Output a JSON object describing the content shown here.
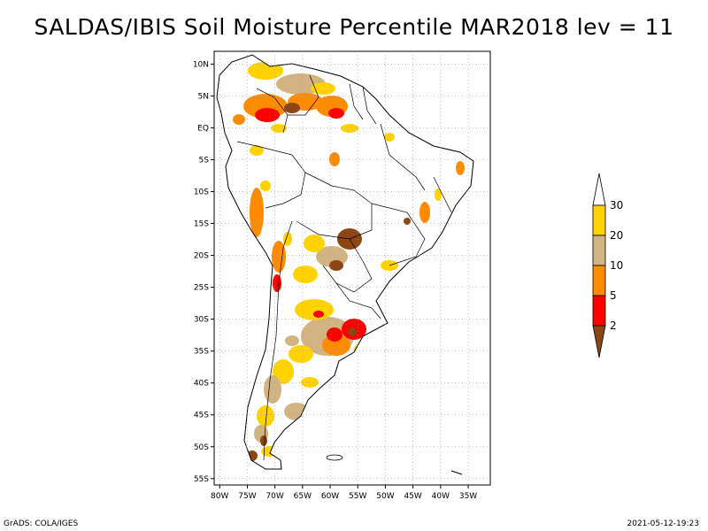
{
  "title": "SALDAS/IBIS Soil Moisture Percentile MAR2018 lev = 11",
  "map": {
    "lon_range": [
      -81,
      -31
    ],
    "lat_range": [
      -56,
      12
    ],
    "lon_ticks": [
      {
        "value": -80,
        "label": "80W"
      },
      {
        "value": -75,
        "label": "75W"
      },
      {
        "value": -70,
        "label": "70W"
      },
      {
        "value": -65,
        "label": "65W"
      },
      {
        "value": -60,
        "label": "60W"
      },
      {
        "value": -55,
        "label": "55W"
      },
      {
        "value": -50,
        "label": "50W"
      },
      {
        "value": -45,
        "label": "45W"
      },
      {
        "value": -40,
        "label": "40W"
      },
      {
        "value": -35,
        "label": "35W"
      }
    ],
    "lat_ticks": [
      {
        "value": 10,
        "label": "10N"
      },
      {
        "value": 5,
        "label": "5N"
      },
      {
        "value": 0,
        "label": "EQ"
      },
      {
        "value": -5,
        "label": "5S"
      },
      {
        "value": -10,
        "label": "10S"
      },
      {
        "value": -15,
        "label": "15S"
      },
      {
        "value": -20,
        "label": "20S"
      },
      {
        "value": -25,
        "label": "25S"
      },
      {
        "value": -30,
        "label": "30S"
      },
      {
        "value": -35,
        "label": "35S"
      },
      {
        "value": -40,
        "label": "40S"
      },
      {
        "value": -45,
        "label": "45S"
      },
      {
        "value": -50,
        "label": "50S"
      },
      {
        "value": -55,
        "label": "55S"
      }
    ],
    "grid": true,
    "coastline_color": "#000000"
  },
  "legend": {
    "bins": [
      {
        "label": "",
        "color": "#ffffff"
      },
      {
        "label": "30",
        "color": "#ffd200"
      },
      {
        "label": "20",
        "color": "#d2b482"
      },
      {
        "label": "10",
        "color": "#ff8c00"
      },
      {
        "label": "5",
        "color": "#ff0000"
      },
      {
        "label": "2",
        "color": "#8c4614"
      }
    ]
  },
  "footer": {
    "left": "GrADS: COLA/IGES",
    "right": "2021-05-12-19:23"
  }
}
